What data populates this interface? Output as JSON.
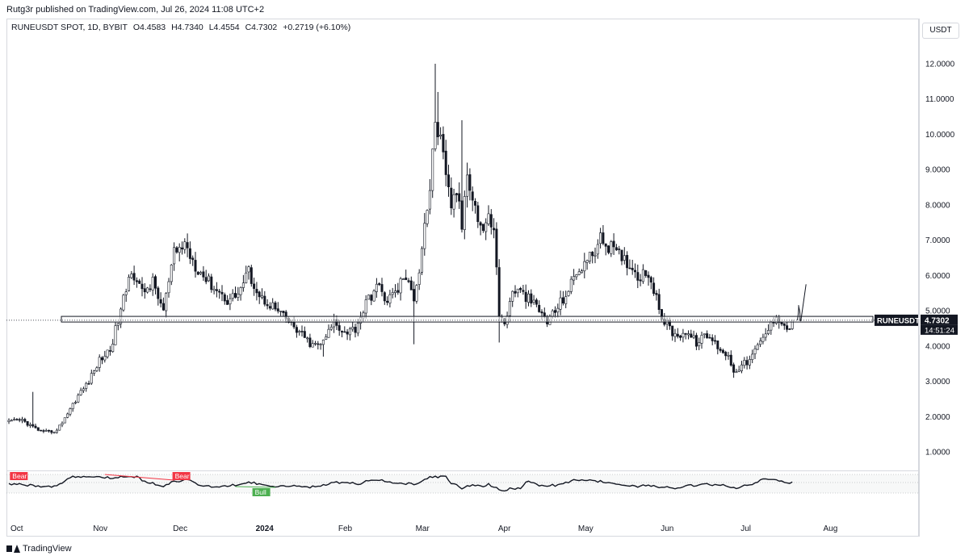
{
  "header": {
    "published": "Rutg3r published on TradingView.com, Jul 26, 2024 11:08 UTC+2",
    "symbol": "RUNEUSDT SPOT, 1D, BYBIT",
    "open": "O4.4583",
    "high": "H4.7340",
    "low": "L4.4554",
    "close": "C4.7302",
    "change": "+0.2719 (+6.10%)"
  },
  "price_scale": {
    "currency": "USDT"
  },
  "price_badge": {
    "symbol": "RUNEUSDT",
    "price": "4.7302",
    "countdown": "14:51:24"
  },
  "footer": {
    "brand": "TradingView"
  },
  "colors": {
    "candle": "#131722",
    "support_zone": "#ffffff",
    "bear_label": "#f23645",
    "bull_label": "#4caf50"
  },
  "chart_data": {
    "type": "candlestick",
    "y_ticks": [
      "12.0000",
      "11.0000",
      "10.0000",
      "9.0000",
      "8.0000",
      "7.0000",
      "6.0000",
      "5.0000",
      "4.0000",
      "3.0000",
      "2.0000",
      "1.0000"
    ],
    "y_range": [
      0.5,
      12.4
    ],
    "x_ticks": [
      {
        "label": "Oct",
        "day": 0
      },
      {
        "label": "Nov",
        "day": 31
      },
      {
        "label": "Dec",
        "day": 61
      },
      {
        "label": "2024",
        "day": 92
      },
      {
        "label": "Feb",
        "day": 123
      },
      {
        "label": "Mar",
        "day": 152
      },
      {
        "label": "Apr",
        "day": 183
      },
      {
        "label": "May",
        "day": 213
      },
      {
        "label": "Jun",
        "day": 244
      },
      {
        "label": "Jul",
        "day": 274
      },
      {
        "label": "Aug",
        "day": 305
      }
    ],
    "support_zone": [
      4.68,
      4.84
    ],
    "projection": [
      [
        6.3,
        4.73
      ],
      [
        8.6,
        5.05
      ],
      [
        10.6,
        4.72
      ],
      [
        17,
        5.75
      ]
    ],
    "close_anchors": [
      [
        0,
        1.85
      ],
      [
        5,
        1.9
      ],
      [
        9,
        1.7
      ],
      [
        13,
        1.55
      ],
      [
        18,
        1.6
      ],
      [
        22,
        2.1
      ],
      [
        26,
        2.6
      ],
      [
        30,
        3.0
      ],
      [
        34,
        3.6
      ],
      [
        38,
        3.9
      ],
      [
        42,
        5.0
      ],
      [
        46,
        6.2
      ],
      [
        50,
        5.5
      ],
      [
        54,
        5.8
      ],
      [
        58,
        5.0
      ],
      [
        62,
        6.6
      ],
      [
        66,
        6.9
      ],
      [
        70,
        6.3
      ],
      [
        74,
        5.9
      ],
      [
        78,
        5.6
      ],
      [
        82,
        5.3
      ],
      [
        86,
        5.5
      ],
      [
        90,
        6.1
      ],
      [
        94,
        5.4
      ],
      [
        98,
        5.2
      ],
      [
        102,
        4.9
      ],
      [
        106,
        4.6
      ],
      [
        110,
        4.3
      ],
      [
        114,
        4.0
      ],
      [
        118,
        4.1
      ],
      [
        122,
        4.7
      ],
      [
        126,
        4.4
      ],
      [
        130,
        4.5
      ],
      [
        134,
        5.2
      ],
      [
        138,
        5.7
      ],
      [
        142,
        5.3
      ],
      [
        146,
        5.6
      ],
      [
        148,
        6.0
      ],
      [
        152,
        5.4
      ],
      [
        154,
        6.2
      ],
      [
        156,
        7.5
      ],
      [
        158,
        8.4
      ],
      [
        160,
        10.4
      ],
      [
        162,
        9.8
      ],
      [
        164,
        8.7
      ],
      [
        166,
        8.0
      ],
      [
        168,
        8.4
      ],
      [
        170,
        7.4
      ],
      [
        172,
        9.0
      ],
      [
        174,
        8.3
      ],
      [
        176,
        7.6
      ],
      [
        178,
        7.3
      ],
      [
        180,
        7.6
      ],
      [
        182,
        7.4
      ],
      [
        184,
        4.9
      ],
      [
        186,
        4.6
      ],
      [
        188,
        5.3
      ],
      [
        190,
        5.6
      ],
      [
        194,
        5.4
      ],
      [
        198,
        5.1
      ],
      [
        202,
        4.7
      ],
      [
        206,
        5.1
      ],
      [
        210,
        5.6
      ],
      [
        214,
        6.2
      ],
      [
        218,
        6.5
      ],
      [
        222,
        7.0
      ],
      [
        226,
        6.8
      ],
      [
        228,
        6.6
      ],
      [
        232,
        6.4
      ],
      [
        236,
        6.0
      ],
      [
        240,
        6.1
      ],
      [
        242,
        5.6
      ],
      [
        244,
        5.0
      ],
      [
        246,
        4.7
      ],
      [
        250,
        4.3
      ],
      [
        254,
        4.4
      ],
      [
        258,
        4.1
      ],
      [
        262,
        4.3
      ],
      [
        266,
        4.0
      ],
      [
        270,
        3.7
      ],
      [
        272,
        3.3
      ],
      [
        274,
        3.4
      ],
      [
        278,
        3.6
      ],
      [
        282,
        4.1
      ],
      [
        286,
        4.6
      ],
      [
        288,
        4.9
      ],
      [
        290,
        4.7
      ],
      [
        292,
        4.45
      ],
      [
        294,
        4.73
      ]
    ],
    "spikes": [
      {
        "day": 9,
        "high": 2.7
      },
      {
        "day": 118,
        "low": 3.7
      },
      {
        "day": 152,
        "low": 4.05
      },
      {
        "day": 160,
        "high": 12.0
      },
      {
        "day": 161,
        "high": 11.2
      },
      {
        "day": 170,
        "high": 10.4
      },
      {
        "day": 184,
        "low": 4.1
      },
      {
        "day": 222,
        "high": 7.35
      },
      {
        "day": 272,
        "low": 3.1
      }
    ],
    "oscillator": {
      "labels": [
        {
          "text": "Bear",
          "day": 1,
          "color": "#f23645"
        },
        {
          "text": "Bear",
          "day": 62,
          "color": "#f23645"
        },
        {
          "text": "Bull",
          "day": 92,
          "color": "#4caf50"
        }
      ]
    }
  }
}
